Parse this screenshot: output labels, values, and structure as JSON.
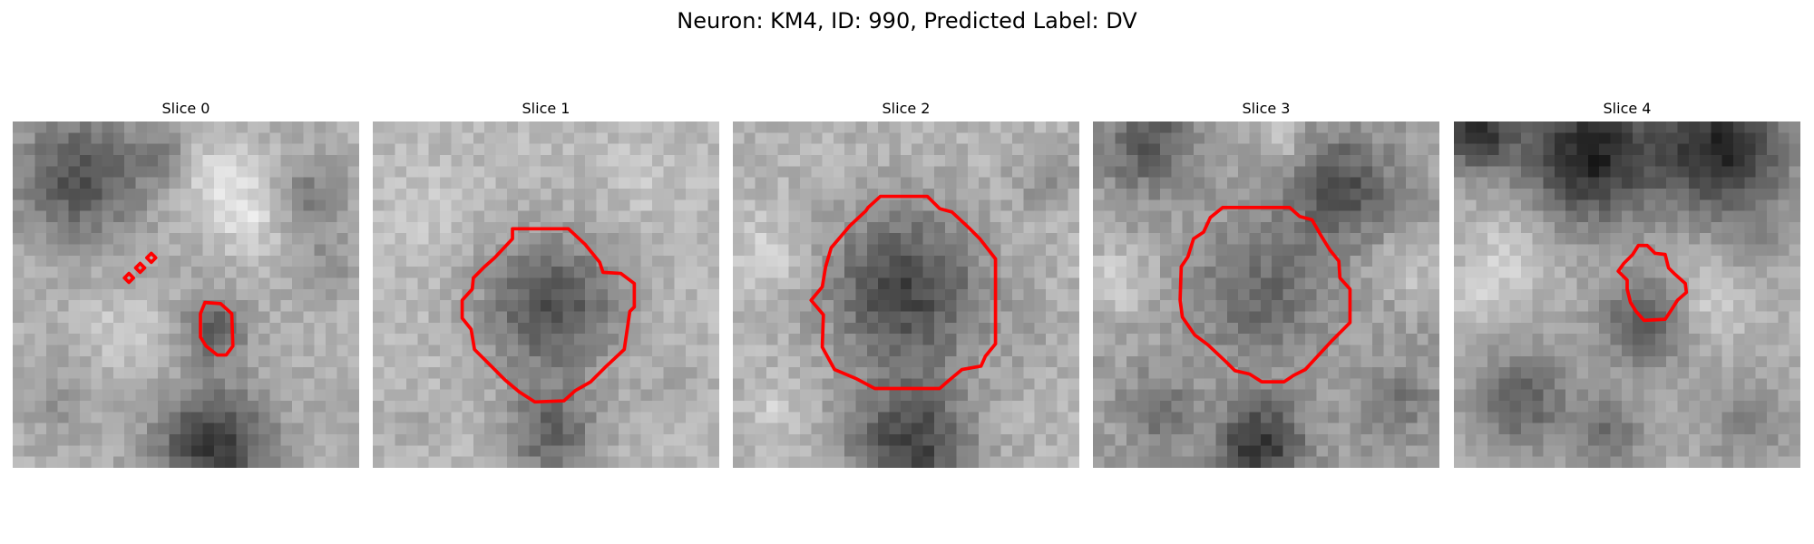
{
  "figure": {
    "suptitle": "Neuron: KM4, ID: 990, Predicted Label: DV"
  },
  "panels": [
    {
      "title": "Slice 0"
    },
    {
      "title": "Slice 1"
    },
    {
      "title": "Slice 2"
    },
    {
      "title": "Slice 3"
    },
    {
      "title": "Slice 4"
    }
  ],
  "colors": {
    "contour": "#ff0000",
    "background": "#ffffff",
    "colormap": "grayscale"
  }
}
